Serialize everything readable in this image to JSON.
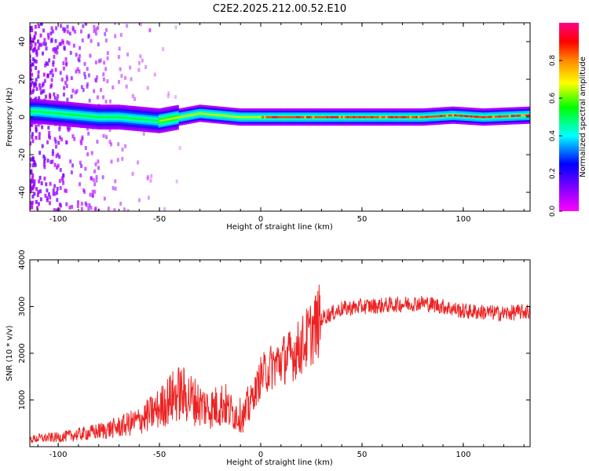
{
  "figure": {
    "title": "C2E2.2025.212.00.52.E10"
  },
  "chart_data": [
    {
      "type": "heatmap",
      "xlabel": "Height of straight line (km)",
      "ylabel": "Frequency (Hz)",
      "xlim": [
        -114,
        133
      ],
      "ylim": [
        -50,
        50
      ],
      "xticks": [
        -100,
        -50,
        0,
        50,
        100
      ],
      "yticks": [
        -40,
        -20,
        0,
        20,
        40
      ],
      "grid": false,
      "colorbar": {
        "label": "Normalized spectral amplitude",
        "range": [
          0,
          1
        ],
        "ticks": [
          0.0,
          0.2,
          0.4,
          0.6,
          0.8
        ],
        "colormap": "rainbow (magenta-blue-cyan-green-yellow-orange-red-pink)"
      },
      "ridge_frequency_hz": [
        {
          "x": -110,
          "y": 3
        },
        {
          "x": -100,
          "y": 2
        },
        {
          "x": -90,
          "y": 1
        },
        {
          "x": -80,
          "y": 0
        },
        {
          "x": -70,
          "y": 0
        },
        {
          "x": -60,
          "y": -1
        },
        {
          "x": -50,
          "y": -2
        },
        {
          "x": -40,
          "y": 0
        },
        {
          "x": -30,
          "y": 2
        },
        {
          "x": -20,
          "y": 1
        },
        {
          "x": -10,
          "y": 0
        },
        {
          "x": 0,
          "y": 0
        },
        {
          "x": 10,
          "y": 0
        },
        {
          "x": 20,
          "y": 0
        },
        {
          "x": 40,
          "y": 0
        },
        {
          "x": 60,
          "y": 0
        },
        {
          "x": 80,
          "y": 0
        },
        {
          "x": 95,
          "y": 1
        },
        {
          "x": 110,
          "y": 0
        },
        {
          "x": 133,
          "y": 1
        }
      ]
    },
    {
      "type": "line",
      "xlabel": "Height of straight line (km)",
      "ylabel": "SNR (10 * v/v)",
      "xlim": [
        -114,
        133
      ],
      "ylim": [
        0,
        4000
      ],
      "xticks": [
        -100,
        -50,
        0,
        50,
        100
      ],
      "yticks": [
        1000,
        2000,
        3000,
        4000
      ],
      "grid": false,
      "series": [
        {
          "color": "#ee2222",
          "x": [
            -114,
            -110,
            -100,
            -90,
            -80,
            -70,
            -60,
            -50,
            -45,
            -40,
            -35,
            -30,
            -25,
            -20,
            -18,
            -16,
            -12,
            -8,
            -5,
            -2,
            0,
            5,
            10,
            15,
            20,
            25,
            30,
            40,
            50,
            60,
            70,
            80,
            90,
            95,
            100,
            110,
            120,
            133
          ],
          "y": [
            150,
            180,
            200,
            260,
            330,
            420,
            560,
            820,
            1020,
            1150,
            1050,
            900,
            820,
            880,
            950,
            780,
            700,
            650,
            1000,
            1250,
            1500,
            1700,
            1850,
            1950,
            2150,
            2450,
            2750,
            2950,
            3000,
            3020,
            3050,
            3080,
            3000,
            2950,
            2900,
            2880,
            2850,
            2900
          ]
        }
      ]
    }
  ]
}
